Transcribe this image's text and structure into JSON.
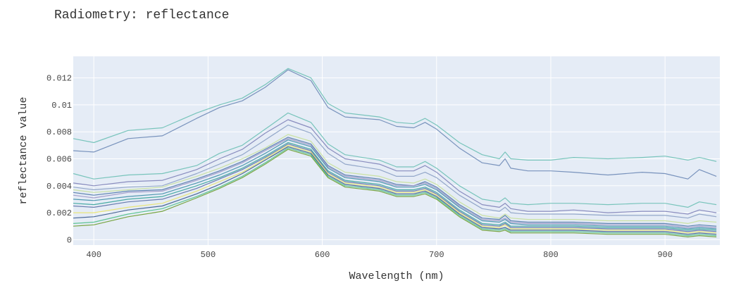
{
  "chart_data": {
    "type": "line",
    "title": "Radiometry: reflectance",
    "xlabel": "Wavelength (nm)",
    "ylabel": "reflectance value",
    "xlim": [
      382,
      948
    ],
    "ylim": [
      -0.0004,
      0.0136
    ],
    "x_ticks": [
      400,
      500,
      600,
      700,
      800,
      900
    ],
    "x_tick_labels": [
      "400",
      "500",
      "600",
      "700",
      "800",
      "900"
    ],
    "y_ticks": [
      0,
      0.002,
      0.004,
      0.006,
      0.008,
      0.01,
      0.012
    ],
    "y_tick_labels": [
      "0",
      "0.002",
      "0.004",
      "0.006",
      "0.008",
      "0.01",
      "0.012"
    ],
    "grid": true,
    "x": [
      382,
      400,
      430,
      460,
      490,
      510,
      530,
      550,
      570,
      590,
      605,
      620,
      650,
      665,
      680,
      690,
      700,
      720,
      740,
      755,
      760,
      765,
      780,
      800,
      820,
      850,
      880,
      900,
      920,
      930,
      945
    ],
    "series": [
      {
        "color": "#6cc0b5",
        "values": [
          0.0075,
          0.0072,
          0.0081,
          0.0083,
          0.0094,
          0.01,
          0.0105,
          0.0115,
          0.0127,
          0.012,
          0.0101,
          0.0094,
          0.0091,
          0.0087,
          0.0086,
          0.009,
          0.0085,
          0.0072,
          0.0063,
          0.006,
          0.0065,
          0.006,
          0.0059,
          0.0059,
          0.0061,
          0.006,
          0.0061,
          0.0062,
          0.0059,
          0.0061,
          0.0058
        ]
      },
      {
        "color": "#6b88b6",
        "values": [
          0.0066,
          0.0065,
          0.0075,
          0.0077,
          0.009,
          0.0098,
          0.0103,
          0.0113,
          0.0126,
          0.0118,
          0.0098,
          0.0091,
          0.0089,
          0.0084,
          0.0083,
          0.0087,
          0.0082,
          0.0068,
          0.0057,
          0.0055,
          0.006,
          0.0053,
          0.0051,
          0.0051,
          0.005,
          0.0048,
          0.005,
          0.0049,
          0.0045,
          0.0052,
          0.0047
        ]
      },
      {
        "color": "#6cc0b5",
        "values": [
          0.0049,
          0.0045,
          0.0048,
          0.0049,
          0.0055,
          0.0064,
          0.007,
          0.0082,
          0.0094,
          0.0087,
          0.0071,
          0.0063,
          0.0059,
          0.0054,
          0.0054,
          0.0058,
          0.0053,
          0.004,
          0.003,
          0.0028,
          0.0031,
          0.0027,
          0.0026,
          0.0027,
          0.0027,
          0.0026,
          0.0027,
          0.0027,
          0.0024,
          0.0028,
          0.0026
        ]
      },
      {
        "color": "#7e82b8",
        "values": [
          0.0042,
          0.004,
          0.0043,
          0.0044,
          0.0052,
          0.006,
          0.0067,
          0.0079,
          0.0089,
          0.0083,
          0.0068,
          0.006,
          0.0056,
          0.0051,
          0.0051,
          0.0055,
          0.005,
          0.0036,
          0.0026,
          0.0024,
          0.0027,
          0.0023,
          0.0021,
          0.0021,
          0.0022,
          0.002,
          0.0021,
          0.0021,
          0.0019,
          0.0022,
          0.002
        ]
      },
      {
        "color": "#8aa0c4",
        "values": [
          0.0039,
          0.0037,
          0.0039,
          0.004,
          0.0049,
          0.0056,
          0.0063,
          0.0074,
          0.0085,
          0.0079,
          0.0064,
          0.0056,
          0.0052,
          0.0047,
          0.0047,
          0.005,
          0.0046,
          0.0033,
          0.0023,
          0.0021,
          0.0024,
          0.002,
          0.0019,
          0.0019,
          0.0019,
          0.0018,
          0.0018,
          0.0018,
          0.0016,
          0.0019,
          0.0017
        ]
      },
      {
        "color": "#c5e09a",
        "values": [
          0.0037,
          0.0035,
          0.0037,
          0.0039,
          0.0047,
          0.0053,
          0.006,
          0.0068,
          0.0078,
          0.0073,
          0.0057,
          0.005,
          0.0047,
          0.0043,
          0.0042,
          0.0045,
          0.0041,
          0.0028,
          0.0018,
          0.0016,
          0.0019,
          0.0016,
          0.0015,
          0.0015,
          0.0015,
          0.0014,
          0.0014,
          0.0014,
          0.0012,
          0.0014,
          0.0013
        ]
      },
      {
        "color": "#4f77aa",
        "values": [
          0.0035,
          0.0033,
          0.0036,
          0.0037,
          0.0045,
          0.0051,
          0.0058,
          0.0067,
          0.0076,
          0.0071,
          0.0055,
          0.0048,
          0.0045,
          0.0041,
          0.004,
          0.0043,
          0.0039,
          0.0026,
          0.0016,
          0.0015,
          0.0018,
          0.0014,
          0.0013,
          0.0013,
          0.0013,
          0.0012,
          0.0012,
          0.0012,
          0.001,
          0.0011,
          0.001
        ]
      },
      {
        "color": "#9b96c6",
        "values": [
          0.0033,
          0.0031,
          0.0035,
          0.0036,
          0.0044,
          0.005,
          0.0057,
          0.0066,
          0.0075,
          0.007,
          0.0054,
          0.0047,
          0.0044,
          0.004,
          0.004,
          0.0042,
          0.0038,
          0.0025,
          0.0015,
          0.0014,
          0.0016,
          0.0013,
          0.0012,
          0.0012,
          0.0012,
          0.0011,
          0.0011,
          0.0011,
          0.0009,
          0.001,
          0.0009
        ]
      },
      {
        "color": "#3f8fa8",
        "values": [
          0.003,
          0.0029,
          0.0032,
          0.0034,
          0.0042,
          0.0048,
          0.0055,
          0.0064,
          0.0074,
          0.0069,
          0.0053,
          0.0046,
          0.0043,
          0.0039,
          0.0039,
          0.0041,
          0.0037,
          0.0024,
          0.0014,
          0.0013,
          0.0015,
          0.0012,
          0.0011,
          0.0011,
          0.0011,
          0.001,
          0.001,
          0.001,
          0.0008,
          0.0009,
          0.0008
        ]
      },
      {
        "color": "#36a39a",
        "values": [
          0.0027,
          0.0026,
          0.003,
          0.0032,
          0.004,
          0.0046,
          0.0053,
          0.0062,
          0.0072,
          0.0067,
          0.0051,
          0.0044,
          0.0041,
          0.0037,
          0.0037,
          0.0039,
          0.0035,
          0.0022,
          0.0012,
          0.0011,
          0.0013,
          0.001,
          0.001,
          0.001,
          0.001,
          0.0009,
          0.0009,
          0.0009,
          0.0007,
          0.0008,
          0.0007
        ]
      },
      {
        "color": "#5b6fa6",
        "values": [
          0.0025,
          0.0024,
          0.0028,
          0.003,
          0.0038,
          0.0045,
          0.0052,
          0.0061,
          0.0071,
          0.0066,
          0.005,
          0.0043,
          0.004,
          0.0036,
          0.0036,
          0.0038,
          0.0034,
          0.0021,
          0.0011,
          0.001,
          0.0012,
          0.0009,
          0.0009,
          0.0009,
          0.0009,
          0.0008,
          0.0008,
          0.0008,
          0.0006,
          0.0007,
          0.0006
        ]
      },
      {
        "color": "#e8e36a",
        "values": [
          0.002,
          0.002,
          0.0024,
          0.0027,
          0.0036,
          0.0043,
          0.005,
          0.006,
          0.007,
          0.0065,
          0.0049,
          0.0042,
          0.0039,
          0.0035,
          0.0035,
          0.0037,
          0.0033,
          0.002,
          0.001,
          0.0009,
          0.0011,
          0.0008,
          0.0008,
          0.0008,
          0.0008,
          0.0007,
          0.0007,
          0.0007,
          0.0005,
          0.0006,
          0.0005
        ]
      },
      {
        "color": "#3a5a8c",
        "values": [
          0.0016,
          0.0017,
          0.0022,
          0.0025,
          0.0034,
          0.0041,
          0.0049,
          0.0059,
          0.0069,
          0.0064,
          0.0048,
          0.0041,
          0.0038,
          0.0034,
          0.0034,
          0.0036,
          0.0032,
          0.0019,
          0.0009,
          0.0008,
          0.0009,
          0.0007,
          0.0007,
          0.0007,
          0.0007,
          0.0006,
          0.0006,
          0.0006,
          0.0004,
          0.0005,
          0.0004
        ]
      },
      {
        "color": "#4fbf8a",
        "values": [
          0.0012,
          0.0013,
          0.0019,
          0.0023,
          0.0032,
          0.0039,
          0.0047,
          0.0057,
          0.0068,
          0.0063,
          0.0047,
          0.004,
          0.0037,
          0.0033,
          0.0033,
          0.0035,
          0.0031,
          0.0018,
          0.0008,
          0.0007,
          0.0008,
          0.0006,
          0.0006,
          0.0006,
          0.0006,
          0.0005,
          0.0005,
          0.0005,
          0.0003,
          0.0004,
          0.0003
        ]
      },
      {
        "color": "#6c9c2f",
        "values": [
          0.001,
          0.0011,
          0.0017,
          0.0021,
          0.0031,
          0.0038,
          0.0046,
          0.0056,
          0.0067,
          0.0062,
          0.0046,
          0.0039,
          0.0036,
          0.0032,
          0.0032,
          0.0034,
          0.003,
          0.0017,
          0.0007,
          0.0006,
          0.0007,
          0.0005,
          0.0005,
          0.0005,
          0.0005,
          0.0004,
          0.0004,
          0.0004,
          0.0002,
          0.0003,
          0.0002
        ]
      }
    ]
  }
}
